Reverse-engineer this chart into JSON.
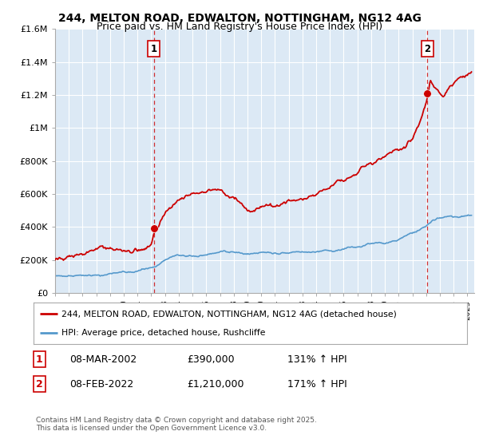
{
  "title1": "244, MELTON ROAD, EDWALTON, NOTTINGHAM, NG12 4AG",
  "title2": "Price paid vs. HM Land Registry's House Price Index (HPI)",
  "title_fontsize": 10,
  "subtitle_fontsize": 9,
  "bg_color": "#ffffff",
  "plot_bg_color": "#dce9f5",
  "grid_color": "#ffffff",
  "red_line_color": "#cc0000",
  "blue_line_color": "#5599cc",
  "marker_color": "#cc0000",
  "vline_color": "#cc0000",
  "ylim": [
    0,
    1600000
  ],
  "yticks": [
    0,
    200000,
    400000,
    600000,
    800000,
    1000000,
    1200000,
    1400000,
    1600000
  ],
  "ytick_labels": [
    "£0",
    "£200K",
    "£400K",
    "£600K",
    "£800K",
    "£1M",
    "£1.2M",
    "£1.4M",
    "£1.6M"
  ],
  "sale1_date_num": 2002.18,
  "sale1_price": 390000,
  "sale1_label": "1",
  "sale2_date_num": 2022.1,
  "sale2_price": 1210000,
  "sale2_label": "2",
  "legend_line1": "244, MELTON ROAD, EDWALTON, NOTTINGHAM, NG12 4AG (detached house)",
  "legend_line2": "HPI: Average price, detached house, Rushcliffe",
  "table_row1": [
    "1",
    "08-MAR-2002",
    "£390,000",
    "131% ↑ HPI"
  ],
  "table_row2": [
    "2",
    "08-FEB-2022",
    "£1,210,000",
    "171% ↑ HPI"
  ],
  "footer": "Contains HM Land Registry data © Crown copyright and database right 2025.\nThis data is licensed under the Open Government Licence v3.0.",
  "xmin": 1995,
  "xmax": 2025.5
}
